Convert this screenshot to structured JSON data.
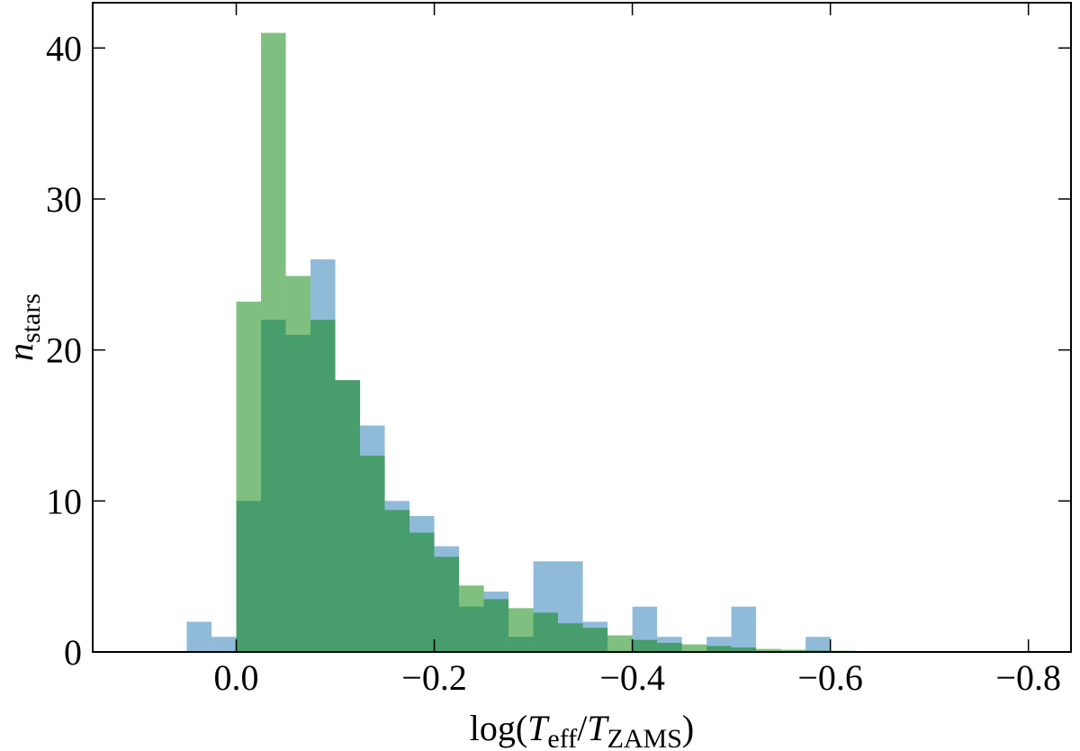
{
  "chart_data": {
    "type": "histogram",
    "xlabel": [
      "log(",
      "T",
      "eff",
      "/",
      "T",
      "ZAMS",
      ")"
    ],
    "ylabel": [
      "n",
      "stars"
    ],
    "bins": [
      0.05,
      0.025,
      0,
      -0.025,
      -0.05,
      -0.075,
      -0.1,
      -0.125,
      -0.15,
      -0.175,
      -0.2,
      -0.225,
      -0.25,
      -0.275,
      -0.3,
      -0.325,
      -0.35,
      -0.375,
      -0.4,
      -0.425,
      -0.45,
      -0.475,
      -0.5,
      -0.525,
      -0.55,
      -0.575,
      -0.6,
      -0.625,
      -0.65,
      -0.675,
      -0.7
    ],
    "series": [
      {
        "color": "#1f77b4",
        "alpha": 0.5,
        "values": [
          2,
          1,
          10,
          22,
          21,
          26,
          18,
          15,
          10,
          9,
          7,
          3,
          4,
          1,
          6,
          6,
          2,
          0,
          3,
          1,
          0,
          1,
          3,
          0,
          0,
          1,
          0,
          0,
          0,
          0
        ]
      },
      {
        "color": "#008000",
        "alpha": 0.5,
        "values": [
          0,
          0,
          23.2,
          41,
          24.9,
          22,
          18,
          13,
          9.4,
          7.9,
          6.3,
          4.4,
          3.5,
          2.9,
          2.6,
          1.9,
          1.6,
          1.1,
          0.8,
          0.6,
          0.5,
          0.4,
          0.3,
          0.2,
          0.15,
          0.1,
          0.08,
          0.06,
          0.04,
          0.02
        ]
      }
    ],
    "xlim": [
      0.145,
      -0.843
    ],
    "ylim": [
      0,
      43
    ],
    "xticks": [
      {
        "value": 0,
        "label": "0.0"
      },
      {
        "value": -0.2,
        "label": "−0.2"
      },
      {
        "value": -0.4,
        "label": "−0.4"
      },
      {
        "value": -0.6,
        "label": "−0.6"
      },
      {
        "value": -0.8,
        "label": "−0.8"
      }
    ],
    "yticks": [
      0,
      10,
      20,
      30,
      40
    ]
  }
}
